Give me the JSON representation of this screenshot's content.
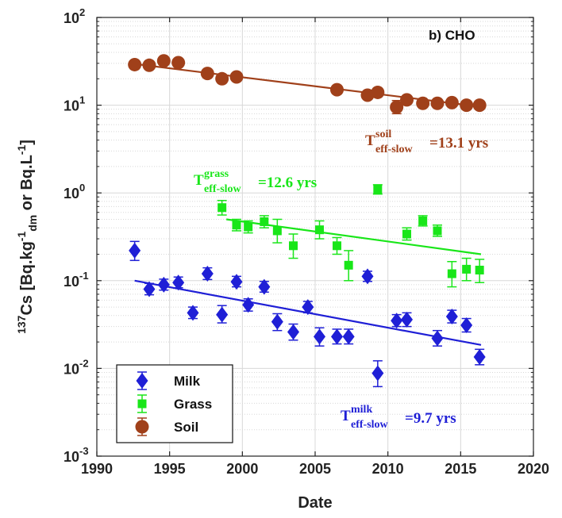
{
  "chart_data": {
    "type": "scatter",
    "panel_label": "b) CHO",
    "xlabel": "Date",
    "ylabel": {
      "main": "Cs [Bq.kg",
      "sup_isotope": "137",
      "sup1": "-1",
      "sub_dm": "dm",
      "or_text": " or Bq.L",
      "sup2": "-1",
      "close": "]"
    },
    "x_ticks": [
      "1990",
      "1995",
      "2000",
      "2005",
      "2010",
      "2015",
      "2020"
    ],
    "xlim": [
      1990,
      2020
    ],
    "y_scale": "log",
    "y_ticks": [
      {
        "base": "10",
        "exp": "2"
      },
      {
        "base": "10",
        "exp": "1"
      },
      {
        "base": "10",
        "exp": "0"
      },
      {
        "base": "10",
        "exp": "-1"
      },
      {
        "base": "10",
        "exp": "-2"
      },
      {
        "base": "10",
        "exp": "-3"
      }
    ],
    "ylim": [
      0.001,
      100
    ],
    "grid": true,
    "legend_position": "bottom-left",
    "colors": {
      "milk": "#1f1fd6",
      "grass": "#19e619",
      "soil": "#a0401a",
      "axis": "#222222",
      "grid": "#d8d8d8"
    },
    "series": [
      {
        "name": "Milk",
        "color": "#1f1fd6",
        "marker": "diamond",
        "points": [
          {
            "x": 1992.6,
            "y": 0.22,
            "lo": 0.17,
            "hi": 0.28
          },
          {
            "x": 1993.6,
            "y": 0.08,
            "lo": 0.069,
            "hi": 0.093
          },
          {
            "x": 1994.6,
            "y": 0.09,
            "lo": 0.078,
            "hi": 0.104
          },
          {
            "x": 1995.6,
            "y": 0.095,
            "lo": 0.083,
            "hi": 0.11
          },
          {
            "x": 1996.6,
            "y": 0.043,
            "lo": 0.037,
            "hi": 0.05
          },
          {
            "x": 1997.6,
            "y": 0.12,
            "lo": 0.103,
            "hi": 0.14
          },
          {
            "x": 1998.6,
            "y": 0.041,
            "lo": 0.033,
            "hi": 0.052
          },
          {
            "x": 1999.6,
            "y": 0.097,
            "lo": 0.085,
            "hi": 0.112
          },
          {
            "x": 2000.4,
            "y": 0.053,
            "lo": 0.045,
            "hi": 0.062
          },
          {
            "x": 2001.5,
            "y": 0.085,
            "lo": 0.074,
            "hi": 0.098
          },
          {
            "x": 2002.4,
            "y": 0.034,
            "lo": 0.027,
            "hi": 0.042
          },
          {
            "x": 2003.5,
            "y": 0.026,
            "lo": 0.021,
            "hi": 0.032
          },
          {
            "x": 2004.5,
            "y": 0.05,
            "lo": 0.043,
            "hi": 0.058
          },
          {
            "x": 2005.3,
            "y": 0.023,
            "lo": 0.018,
            "hi": 0.029
          },
          {
            "x": 2006.5,
            "y": 0.023,
            "lo": 0.019,
            "hi": 0.028
          },
          {
            "x": 2007.3,
            "y": 0.023,
            "lo": 0.019,
            "hi": 0.028
          },
          {
            "x": 2008.6,
            "y": 0.112,
            "lo": 0.098,
            "hi": 0.128
          },
          {
            "x": 2009.3,
            "y": 0.0088,
            "lo": 0.0062,
            "hi": 0.0122
          },
          {
            "x": 2010.6,
            "y": 0.035,
            "lo": 0.03,
            "hi": 0.041
          },
          {
            "x": 2011.3,
            "y": 0.036,
            "lo": 0.03,
            "hi": 0.043
          },
          {
            "x": 2013.4,
            "y": 0.022,
            "lo": 0.018,
            "hi": 0.027
          },
          {
            "x": 2014.4,
            "y": 0.039,
            "lo": 0.033,
            "hi": 0.046
          },
          {
            "x": 2015.4,
            "y": 0.031,
            "lo": 0.026,
            "hi": 0.037
          },
          {
            "x": 2016.3,
            "y": 0.0135,
            "lo": 0.011,
            "hi": 0.0165
          }
        ],
        "fit": {
          "x": [
            1992.6,
            2016.4
          ],
          "y": [
            0.1,
            0.0185
          ]
        }
      },
      {
        "name": "Grass",
        "color": "#19e619",
        "marker": "square",
        "points": [
          {
            "x": 1998.6,
            "y": 0.68,
            "lo": 0.56,
            "hi": 0.82
          },
          {
            "x": 1999.6,
            "y": 0.43,
            "lo": 0.37,
            "hi": 0.5
          },
          {
            "x": 2000.4,
            "y": 0.41,
            "lo": 0.35,
            "hi": 0.48
          },
          {
            "x": 2001.5,
            "y": 0.47,
            "lo": 0.4,
            "hi": 0.55
          },
          {
            "x": 2002.4,
            "y": 0.37,
            "lo": 0.27,
            "hi": 0.5
          },
          {
            "x": 2003.5,
            "y": 0.25,
            "lo": 0.18,
            "hi": 0.34
          },
          {
            "x": 2005.3,
            "y": 0.38,
            "lo": 0.3,
            "hi": 0.48
          },
          {
            "x": 2006.5,
            "y": 0.25,
            "lo": 0.2,
            "hi": 0.31
          },
          {
            "x": 2007.3,
            "y": 0.15,
            "lo": 0.1,
            "hi": 0.22
          },
          {
            "x": 2009.3,
            "y": 1.1,
            "lo": 0.97,
            "hi": 1.24
          },
          {
            "x": 2011.3,
            "y": 0.34,
            "lo": 0.29,
            "hi": 0.4
          },
          {
            "x": 2012.4,
            "y": 0.48,
            "lo": 0.42,
            "hi": 0.55
          },
          {
            "x": 2013.4,
            "y": 0.37,
            "lo": 0.32,
            "hi": 0.43
          },
          {
            "x": 2014.4,
            "y": 0.12,
            "lo": 0.085,
            "hi": 0.165
          },
          {
            "x": 2015.4,
            "y": 0.135,
            "lo": 0.1,
            "hi": 0.18
          },
          {
            "x": 2016.3,
            "y": 0.132,
            "lo": 0.095,
            "hi": 0.175
          }
        ],
        "fit": {
          "x": [
            1998.9,
            2016.4
          ],
          "y": [
            0.5,
            0.2
          ]
        }
      },
      {
        "name": "Soil",
        "color": "#a0401a",
        "marker": "circle",
        "points": [
          {
            "x": 1992.6,
            "y": 29,
            "lo": 28,
            "hi": 30
          },
          {
            "x": 1993.6,
            "y": 28.5,
            "lo": 27.5,
            "hi": 29.5
          },
          {
            "x": 1994.6,
            "y": 32,
            "lo": 31,
            "hi": 33
          },
          {
            "x": 1995.6,
            "y": 30.5,
            "lo": 29.5,
            "hi": 31.5
          },
          {
            "x": 1997.6,
            "y": 23,
            "lo": 22,
            "hi": 24
          },
          {
            "x": 1998.6,
            "y": 20,
            "lo": 19,
            "hi": 21
          },
          {
            "x": 1999.6,
            "y": 21,
            "lo": 20,
            "hi": 22
          },
          {
            "x": 2006.5,
            "y": 15,
            "lo": 14.4,
            "hi": 15.6
          },
          {
            "x": 2008.6,
            "y": 13,
            "lo": 12.5,
            "hi": 13.5
          },
          {
            "x": 2009.3,
            "y": 14,
            "lo": 13.5,
            "hi": 14.5
          },
          {
            "x": 2010.6,
            "y": 9.5,
            "lo": 8.0,
            "hi": 11.3
          },
          {
            "x": 2011.3,
            "y": 11.5,
            "lo": 10.3,
            "hi": 12.8
          },
          {
            "x": 2012.4,
            "y": 10.5,
            "lo": 10.1,
            "hi": 10.9
          },
          {
            "x": 2013.4,
            "y": 10.5,
            "lo": 10.1,
            "hi": 10.9
          },
          {
            "x": 2014.4,
            "y": 10.7,
            "lo": 10.3,
            "hi": 11.1
          },
          {
            "x": 2015.4,
            "y": 10.0,
            "lo": 9.6,
            "hi": 10.4
          },
          {
            "x": 2016.3,
            "y": 10.0,
            "lo": 9.6,
            "hi": 10.4
          }
        ],
        "fit": {
          "x": [
            1992.6,
            2016.4
          ],
          "y": [
            29.5,
            9.6
          ]
        }
      }
    ],
    "annotations": [
      {
        "series": "Soil",
        "prefix": "T",
        "sup": "soil",
        "sub": "eff-slow",
        "value": "=13.1 yrs",
        "color": "#a0401a"
      },
      {
        "series": "Grass",
        "prefix": "T",
        "sup": "grass",
        "sub": "eff-slow",
        "value": "=12.6 yrs",
        "color": "#19e619"
      },
      {
        "series": "Milk",
        "prefix": "T",
        "sup": "milk",
        "sub": "eff-slow",
        "value": "=9.7 yrs",
        "color": "#1f1fd6"
      }
    ]
  }
}
